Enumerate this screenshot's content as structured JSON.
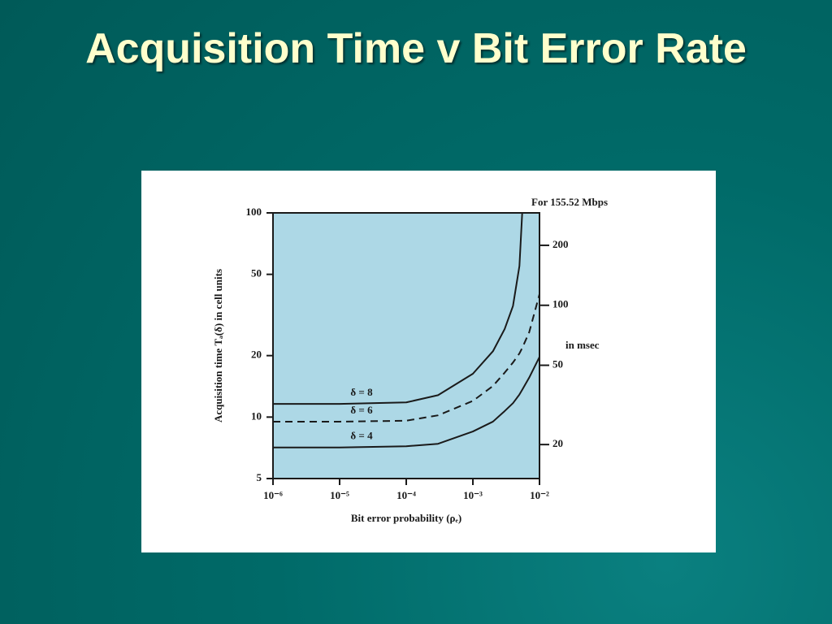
{
  "chart_data": {
    "type": "line",
    "title": "Acquisition Time v Bit Error Rate",
    "xlabel": "Bit error probability (ρₑ)",
    "ylabel": "Acquisition time Tₐ(δ) in cell units",
    "y2label": "in msec",
    "annotation": "For 155.52 Mbps",
    "xlog": true,
    "ylog": true,
    "y2log": true,
    "plot_color": "#add8e6",
    "x": [
      1e-06,
      1e-05,
      0.0001,
      0.0003,
      0.001,
      0.002,
      0.003,
      0.004,
      0.005,
      0.0055,
      0.007,
      0.01
    ],
    "series": [
      {
        "name": "δ = 8",
        "color": "#1a1a1a",
        "dashed": false,
        "values": [
          11.6,
          11.6,
          11.8,
          12.8,
          16.3,
          21,
          27,
          35,
          55,
          100,
          null,
          null
        ]
      },
      {
        "name": "δ = 6",
        "color": "#1a1a1a",
        "dashed": true,
        "values": [
          9.5,
          9.5,
          9.6,
          10.2,
          12,
          14.2,
          16.5,
          18.5,
          20.5,
          21.8,
          26,
          40
        ]
      },
      {
        "name": "δ = 4",
        "color": "#1a1a1a",
        "dashed": false,
        "values": [
          7.1,
          7.1,
          7.2,
          7.4,
          8.5,
          9.5,
          10.7,
          11.7,
          12.9,
          13.6,
          15.6,
          19.7
        ]
      }
    ],
    "xlim": [
      1e-06,
      0.01
    ],
    "xticks": [
      {
        "value": 1e-06,
        "label": "10⁻⁶"
      },
      {
        "value": 1e-05,
        "label": "10⁻⁵"
      },
      {
        "value": 0.0001,
        "label": "10⁻⁴"
      },
      {
        "value": 0.001,
        "label": "10⁻³"
      },
      {
        "value": 0.01,
        "label": "10⁻²"
      }
    ],
    "ylim": [
      5,
      100
    ],
    "yticks": [
      5,
      10,
      20,
      50,
      100
    ],
    "y2lim": [
      13.5,
      291
    ],
    "y2ticks": [
      20,
      50,
      100,
      200
    ]
  }
}
